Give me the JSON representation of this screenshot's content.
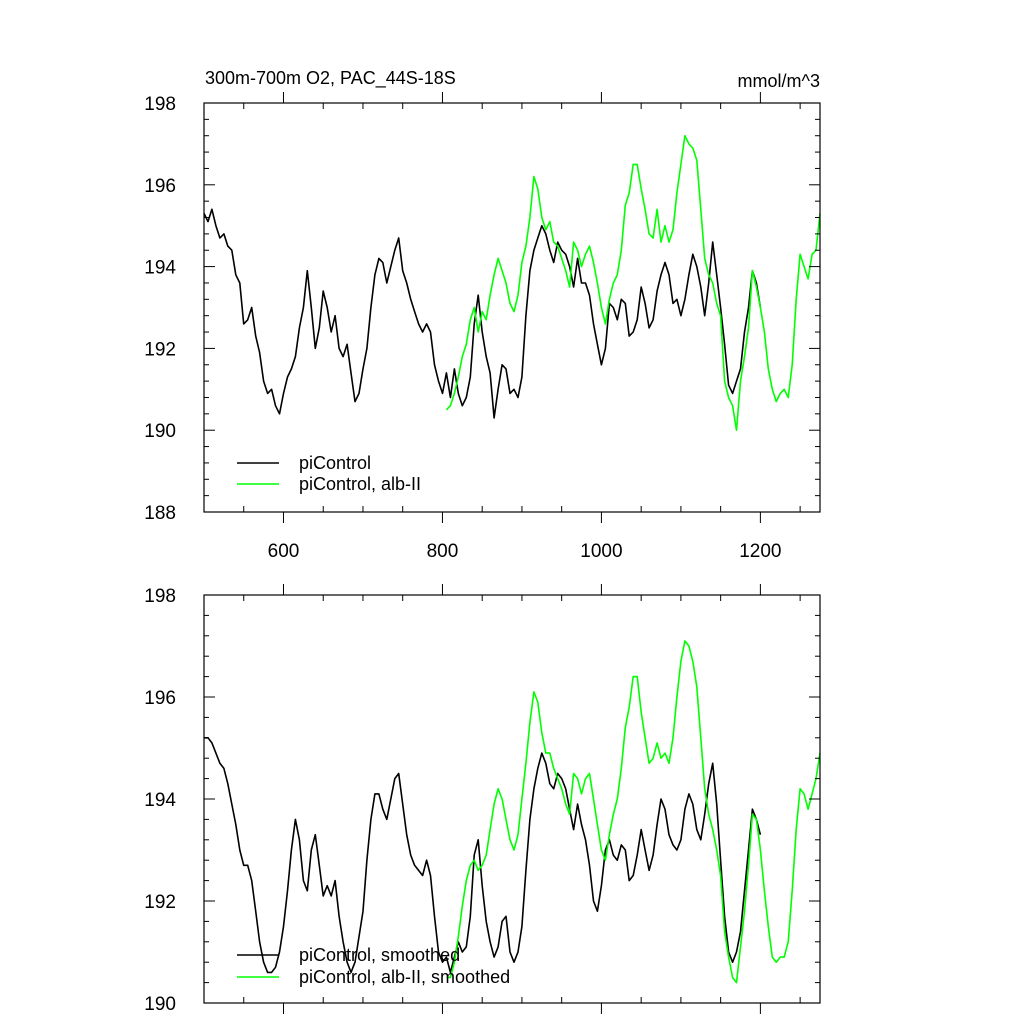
{
  "chart_data": [
    {
      "type": "line",
      "title": "300m-700m O2, PAC_44S-18S",
      "units": "mmol/m^3",
      "xlim": [
        500,
        1275
      ],
      "ylim": [
        188,
        198
      ],
      "xticks": [
        600,
        800,
        1000,
        1200
      ],
      "yticks": [
        188,
        190,
        192,
        194,
        196,
        198
      ],
      "show_x_tick_labels": true,
      "legend_position": "bottom-left",
      "series": [
        {
          "name": "piControl",
          "color": "#000000",
          "x": [
            500,
            505,
            510,
            515,
            520,
            525,
            530,
            535,
            540,
            545,
            550,
            555,
            560,
            565,
            570,
            575,
            580,
            585,
            590,
            595,
            600,
            605,
            610,
            615,
            620,
            625,
            630,
            635,
            640,
            645,
            650,
            655,
            660,
            665,
            670,
            675,
            680,
            685,
            690,
            695,
            700,
            705,
            710,
            715,
            720,
            725,
            730,
            735,
            740,
            745,
            750,
            755,
            760,
            765,
            770,
            775,
            780,
            785,
            790,
            795,
            800,
            805,
            810,
            815,
            820,
            825,
            830,
            835,
            840,
            845,
            850,
            855,
            860,
            865,
            870,
            875,
            880,
            885,
            890,
            895,
            900,
            905,
            910,
            915,
            920,
            925,
            930,
            935,
            940,
            945,
            950,
            955,
            960,
            965,
            970,
            975,
            980,
            985,
            990,
            995,
            1000,
            1005,
            1010,
            1015,
            1020,
            1025,
            1030,
            1035,
            1040,
            1045,
            1050,
            1055,
            1060,
            1065,
            1070,
            1075,
            1080,
            1085,
            1090,
            1095,
            1100,
            1105,
            1110,
            1115,
            1120,
            1125,
            1130,
            1135,
            1140,
            1145,
            1150,
            1155,
            1160,
            1165,
            1170,
            1175,
            1180,
            1185,
            1190,
            1195,
            1200
          ],
          "y": [
            195.3,
            195.1,
            195.4,
            195.0,
            194.7,
            194.8,
            194.5,
            194.4,
            193.8,
            193.6,
            192.6,
            192.7,
            193.0,
            192.3,
            191.9,
            191.2,
            190.9,
            191.0,
            190.6,
            190.4,
            190.9,
            191.3,
            191.5,
            191.8,
            192.5,
            193.0,
            193.9,
            193.0,
            192.0,
            192.5,
            193.4,
            193.0,
            192.4,
            192.8,
            192.0,
            191.8,
            192.1,
            191.4,
            190.7,
            190.9,
            191.5,
            192.0,
            193.0,
            193.8,
            194.2,
            194.1,
            193.6,
            194.0,
            194.4,
            194.7,
            193.9,
            193.6,
            193.2,
            192.9,
            192.6,
            192.4,
            192.6,
            192.4,
            191.6,
            191.2,
            190.9,
            191.4,
            190.8,
            191.5,
            190.9,
            190.6,
            190.8,
            191.3,
            192.6,
            193.3,
            192.4,
            191.8,
            191.4,
            190.3,
            191.0,
            191.6,
            191.5,
            190.9,
            191.0,
            190.8,
            191.3,
            192.8,
            193.9,
            194.4,
            194.7,
            195.0,
            194.8,
            194.4,
            194.1,
            194.6,
            194.4,
            194.3,
            194.0,
            193.5,
            194.2,
            193.6,
            193.6,
            193.3,
            192.6,
            192.1,
            191.6,
            192.0,
            193.1,
            193.0,
            192.7,
            193.2,
            193.1,
            192.3,
            192.4,
            192.7,
            193.5,
            193.1,
            192.5,
            192.7,
            193.4,
            193.8,
            194.1,
            193.8,
            193.1,
            193.2,
            192.8,
            193.2,
            193.8,
            194.3,
            194.0,
            193.5,
            192.8,
            193.6,
            194.6,
            193.8,
            193.0,
            192.1,
            191.1,
            190.9,
            191.2,
            191.5,
            192.4,
            193.0,
            193.9,
            193.6,
            193.0
          ]
        },
        {
          "name": "piControl, alb-II",
          "color": "#00ff00",
          "x": [
            805,
            810,
            815,
            820,
            825,
            830,
            835,
            840,
            845,
            850,
            855,
            860,
            865,
            870,
            875,
            880,
            885,
            890,
            895,
            900,
            905,
            910,
            915,
            920,
            925,
            930,
            935,
            940,
            945,
            950,
            955,
            960,
            965,
            970,
            975,
            980,
            985,
            990,
            995,
            1000,
            1005,
            1010,
            1015,
            1020,
            1025,
            1030,
            1035,
            1040,
            1045,
            1050,
            1055,
            1060,
            1065,
            1070,
            1075,
            1080,
            1085,
            1090,
            1095,
            1100,
            1105,
            1110,
            1115,
            1120,
            1125,
            1130,
            1135,
            1140,
            1145,
            1150,
            1155,
            1160,
            1165,
            1170,
            1175,
            1180,
            1185,
            1190,
            1195,
            1200,
            1205,
            1210,
            1215,
            1220,
            1225,
            1230,
            1235,
            1240,
            1245,
            1250,
            1255,
            1260,
            1265,
            1270,
            1275
          ],
          "y": [
            190.5,
            190.6,
            190.9,
            191.3,
            191.8,
            192.1,
            192.7,
            193.0,
            192.4,
            192.9,
            192.7,
            193.3,
            193.8,
            194.2,
            193.9,
            193.6,
            193.1,
            192.9,
            193.3,
            194.1,
            194.5,
            195.2,
            196.2,
            195.9,
            195.2,
            194.9,
            195.1,
            194.6,
            194.5,
            194.2,
            193.9,
            193.5,
            194.6,
            194.4,
            194.0,
            194.3,
            194.5,
            194.1,
            193.6,
            193.0,
            192.6,
            193.2,
            193.6,
            193.8,
            194.4,
            195.5,
            195.8,
            196.5,
            196.5,
            195.9,
            195.4,
            194.8,
            194.7,
            195.4,
            194.6,
            195.0,
            194.6,
            194.9,
            195.8,
            196.5,
            197.2,
            197.0,
            196.9,
            196.6,
            195.4,
            194.2,
            193.8,
            193.6,
            193.1,
            192.8,
            191.2,
            190.8,
            190.6,
            190.0,
            191.2,
            191.8,
            192.5,
            193.9,
            193.5,
            193.0,
            192.4,
            191.5,
            191.0,
            190.7,
            190.9,
            191.0,
            190.8,
            191.6,
            193.2,
            194.3,
            194.0,
            193.7,
            194.3,
            194.4,
            195.3
          ]
        }
      ]
    },
    {
      "type": "line",
      "title": "",
      "units": "",
      "xlim": [
        500,
        1275
      ],
      "ylim": [
        190,
        198
      ],
      "xticks": [
        600,
        800,
        1000,
        1200
      ],
      "yticks": [
        190,
        192,
        194,
        196,
        198
      ],
      "show_x_tick_labels": false,
      "legend_position": "bottom-left",
      "series": [
        {
          "name": "piControl, smoothed",
          "color": "#000000",
          "x": [
            500,
            505,
            510,
            515,
            520,
            525,
            530,
            535,
            540,
            545,
            550,
            555,
            560,
            565,
            570,
            575,
            580,
            585,
            590,
            595,
            600,
            605,
            610,
            615,
            620,
            625,
            630,
            635,
            640,
            645,
            650,
            655,
            660,
            665,
            670,
            675,
            680,
            685,
            690,
            695,
            700,
            705,
            710,
            715,
            720,
            725,
            730,
            735,
            740,
            745,
            750,
            755,
            760,
            765,
            770,
            775,
            780,
            785,
            790,
            795,
            800,
            805,
            810,
            815,
            820,
            825,
            830,
            835,
            840,
            845,
            850,
            855,
            860,
            865,
            870,
            875,
            880,
            885,
            890,
            895,
            900,
            905,
            910,
            915,
            920,
            925,
            930,
            935,
            940,
            945,
            950,
            955,
            960,
            965,
            970,
            975,
            980,
            985,
            990,
            995,
            1000,
            1005,
            1010,
            1015,
            1020,
            1025,
            1030,
            1035,
            1040,
            1045,
            1050,
            1055,
            1060,
            1065,
            1070,
            1075,
            1080,
            1085,
            1090,
            1095,
            1100,
            1105,
            1110,
            1115,
            1120,
            1125,
            1130,
            1135,
            1140,
            1145,
            1150,
            1155,
            1160,
            1165,
            1170,
            1175,
            1180,
            1185,
            1190,
            1195,
            1200
          ],
          "y": [
            195.2,
            195.2,
            195.1,
            194.9,
            194.7,
            194.6,
            194.3,
            193.9,
            193.5,
            193.0,
            192.7,
            192.7,
            192.4,
            191.8,
            191.2,
            190.8,
            190.6,
            190.6,
            190.7,
            191.0,
            191.5,
            192.2,
            193.0,
            193.6,
            193.2,
            192.4,
            192.2,
            193.0,
            193.3,
            192.7,
            192.1,
            192.3,
            192.1,
            192.4,
            191.7,
            191.2,
            190.8,
            190.6,
            190.8,
            191.3,
            191.8,
            192.8,
            193.6,
            194.1,
            194.1,
            193.8,
            193.6,
            194.0,
            194.4,
            194.5,
            193.9,
            193.3,
            192.9,
            192.7,
            192.6,
            192.5,
            192.8,
            192.5,
            191.7,
            191.0,
            190.8,
            190.9,
            190.6,
            190.9,
            191.2,
            191.0,
            191.1,
            191.7,
            192.9,
            193.2,
            192.3,
            191.6,
            191.2,
            190.9,
            191.1,
            191.6,
            191.7,
            191.0,
            190.8,
            191.0,
            191.5,
            192.6,
            193.6,
            194.2,
            194.6,
            194.9,
            194.7,
            194.3,
            194.2,
            194.5,
            194.4,
            194.2,
            193.8,
            193.4,
            193.9,
            193.5,
            193.2,
            192.7,
            192.0,
            191.8,
            192.3,
            193.0,
            193.2,
            192.9,
            192.8,
            193.1,
            193.0,
            192.4,
            192.5,
            192.9,
            193.4,
            193.0,
            192.6,
            192.9,
            193.5,
            194.0,
            193.8,
            193.3,
            193.1,
            193.0,
            193.2,
            193.8,
            194.1,
            193.9,
            193.4,
            193.2,
            193.7,
            194.3,
            194.7,
            193.9,
            192.8,
            191.7,
            191.0,
            190.8,
            191.0,
            191.4,
            192.2,
            193.0,
            193.8,
            193.6,
            193.3
          ]
        },
        {
          "name": "piControl, alb-II, smoothed",
          "color": "#00ff00",
          "x": [
            805,
            810,
            815,
            820,
            825,
            830,
            835,
            840,
            845,
            850,
            855,
            860,
            865,
            870,
            875,
            880,
            885,
            890,
            895,
            900,
            905,
            910,
            915,
            920,
            925,
            930,
            935,
            940,
            945,
            950,
            955,
            960,
            965,
            970,
            975,
            980,
            985,
            990,
            995,
            1000,
            1005,
            1010,
            1015,
            1020,
            1025,
            1030,
            1035,
            1040,
            1045,
            1050,
            1055,
            1060,
            1065,
            1070,
            1075,
            1080,
            1085,
            1090,
            1095,
            1100,
            1105,
            1110,
            1115,
            1120,
            1125,
            1130,
            1135,
            1140,
            1145,
            1150,
            1155,
            1160,
            1165,
            1170,
            1175,
            1180,
            1185,
            1190,
            1195,
            1200,
            1205,
            1210,
            1215,
            1220,
            1225,
            1230,
            1235,
            1240,
            1245,
            1250,
            1255,
            1260,
            1265,
            1270,
            1275
          ],
          "y": [
            190.5,
            190.5,
            190.8,
            191.3,
            191.9,
            192.4,
            192.7,
            192.8,
            192.6,
            192.7,
            192.9,
            193.4,
            193.9,
            194.2,
            194.0,
            193.6,
            193.2,
            193.0,
            193.3,
            194.0,
            194.7,
            195.5,
            196.1,
            195.9,
            195.3,
            194.9,
            194.9,
            194.6,
            194.4,
            194.2,
            193.9,
            193.7,
            194.5,
            194.4,
            194.1,
            194.4,
            194.5,
            194.0,
            193.5,
            193.0,
            192.8,
            193.3,
            193.7,
            194.0,
            194.6,
            195.4,
            195.8,
            196.4,
            196.4,
            195.7,
            195.2,
            194.7,
            194.8,
            195.1,
            194.8,
            194.9,
            194.7,
            195.2,
            196.0,
            196.7,
            197.1,
            197.0,
            196.7,
            196.2,
            195.2,
            194.2,
            193.7,
            193.4,
            193.0,
            192.5,
            191.4,
            190.9,
            190.5,
            190.4,
            191.1,
            191.8,
            192.7,
            193.7,
            193.6,
            193.0,
            192.2,
            191.5,
            190.9,
            190.8,
            190.9,
            190.9,
            191.2,
            192.2,
            193.4,
            194.2,
            194.1,
            193.8,
            194.1,
            194.4,
            194.9
          ]
        }
      ]
    }
  ]
}
